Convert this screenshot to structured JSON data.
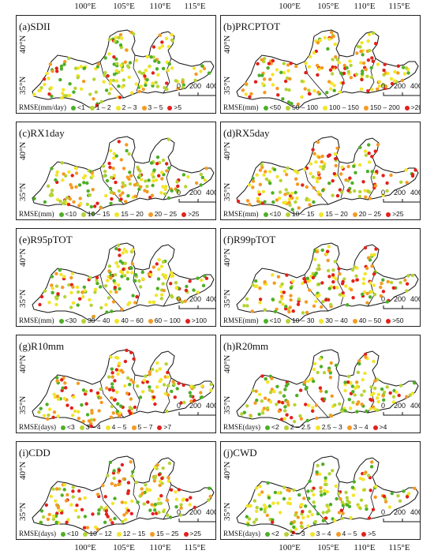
{
  "lon_labels": [
    "100°E",
    "105°E",
    "110°E",
    "115°E"
  ],
  "lat_labels": [
    "40°N",
    "35°N"
  ],
  "colors": [
    "#4daf26",
    "#b5d334",
    "#f2e529",
    "#f59a22",
    "#e3201b"
  ],
  "scale_bar": {
    "labels": [
      "0",
      "200",
      "400Km"
    ]
  },
  "panels": [
    {
      "title": "(a)SDII",
      "legend_title": "RMSE(mm/day)",
      "legend": [
        "<1",
        "1 – 2",
        "2 – 3",
        "3 – 5",
        ">5"
      ],
      "weights": [
        3,
        3,
        4,
        2,
        1
      ]
    },
    {
      "title": "(b)PRCPTOT",
      "legend_title": "RMSE(mm)",
      "legend": [
        "<50",
        "50 – 100",
        "100 – 150",
        "150 – 200",
        ">200"
      ],
      "weights": [
        2,
        2,
        3,
        3,
        3
      ]
    },
    {
      "title": "(c)RX1day",
      "legend_title": "RMSE(mm)",
      "legend": [
        "<10",
        "10 – 15",
        "15 – 20",
        "20 – 25",
        ">25"
      ],
      "weights": [
        3,
        3,
        3,
        3,
        2
      ]
    },
    {
      "title": "(d)RX5day",
      "legend_title": "RMSE(mm)",
      "legend": [
        "<10",
        "10 – 15",
        "15 – 20",
        "20 – 25",
        ">25"
      ],
      "weights": [
        2,
        3,
        3,
        3,
        2
      ]
    },
    {
      "title": "(e)R95pTOT",
      "legend_title": "RMSE(mm)",
      "legend": [
        "<30",
        "30 – 40",
        "40 – 60",
        "60 – 100",
        ">100"
      ],
      "weights": [
        3,
        3,
        4,
        2,
        1
      ]
    },
    {
      "title": "(f)R99pTOT",
      "legend_title": "RMSE(mm)",
      "legend": [
        "<10",
        "10 – 30",
        "30 – 40",
        "40 – 50",
        ">50"
      ],
      "weights": [
        2,
        3,
        3,
        3,
        3
      ]
    },
    {
      "title": "(g)R10mm",
      "legend_title": "RMSE(days)",
      "legend": [
        "<3",
        "3 – 4",
        "4 – 5",
        "5 – 7",
        ">7"
      ],
      "weights": [
        2,
        2,
        3,
        3,
        3
      ]
    },
    {
      "title": "(h)R20mm",
      "legend_title": "RMSE(days)",
      "legend": [
        "<2",
        "2 – 2.5",
        "2.5 – 3",
        "3 – 4",
        ">4"
      ],
      "weights": [
        3,
        3,
        3,
        3,
        2
      ]
    },
    {
      "title": "(i)CDD",
      "legend_title": "RMSE(days)",
      "legend": [
        "<10",
        "10 – 12",
        "12 – 15",
        "15 – 25",
        ">25"
      ],
      "weights": [
        2,
        3,
        3,
        3,
        3
      ]
    },
    {
      "title": "(j)CWD",
      "legend_title": "RMSE(days)",
      "legend": [
        "<2",
        "2 – 3",
        "3 – 4",
        "4 – 5",
        ">5"
      ],
      "weights": [
        3,
        3,
        4,
        2,
        2
      ]
    }
  ]
}
